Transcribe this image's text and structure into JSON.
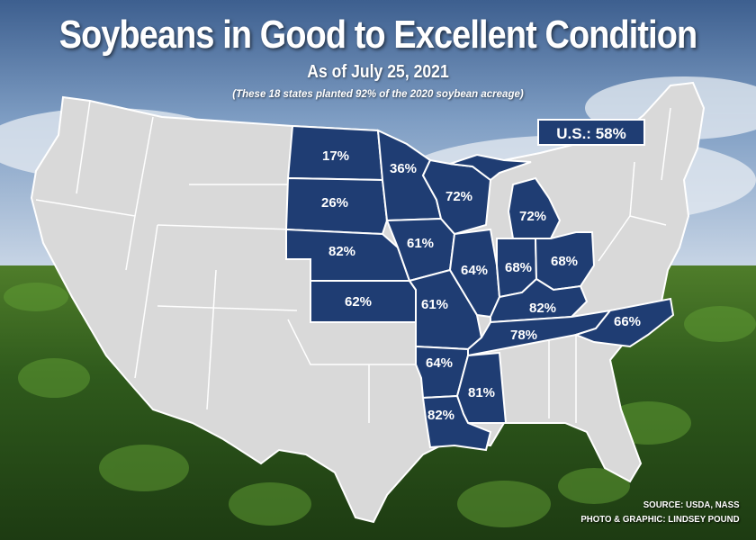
{
  "title": "Soybeans in Good to Excellent Condition",
  "subtitle": "As of July 25, 2021",
  "note": "(These 18 states planted 92% of the 2020 soybean acreage)",
  "us_total": "U.S.: 58%",
  "source_line1": "SOURCE: USDA, NASS",
  "source_line2": "PHOTO & GRAPHIC: LINDSEY POUND",
  "colors": {
    "highlight": "#1f3d73",
    "state_fill": "#d9d9d9",
    "border": "#ffffff"
  },
  "states": [
    {
      "state": "North Dakota",
      "label": "17%"
    },
    {
      "state": "Minnesota",
      "label": "36%"
    },
    {
      "state": "Wisconsin",
      "label": "72%"
    },
    {
      "state": "Michigan",
      "label": "72%"
    },
    {
      "state": "South Dakota",
      "label": "26%"
    },
    {
      "state": "Nebraska",
      "label": "82%"
    },
    {
      "state": "Iowa",
      "label": "61%"
    },
    {
      "state": "Illinois",
      "label": "64%"
    },
    {
      "state": "Indiana",
      "label": "68%"
    },
    {
      "state": "Ohio",
      "label": "68%"
    },
    {
      "state": "Kansas",
      "label": "62%"
    },
    {
      "state": "Missouri",
      "label": "61%"
    },
    {
      "state": "Kentucky",
      "label": "82%"
    },
    {
      "state": "Tennessee",
      "label": "78%"
    },
    {
      "state": "North Carolina",
      "label": "66%"
    },
    {
      "state": "Arkansas",
      "label": "64%"
    },
    {
      "state": "Mississippi",
      "label": "81%"
    },
    {
      "state": "Louisiana",
      "label": "82%"
    }
  ]
}
